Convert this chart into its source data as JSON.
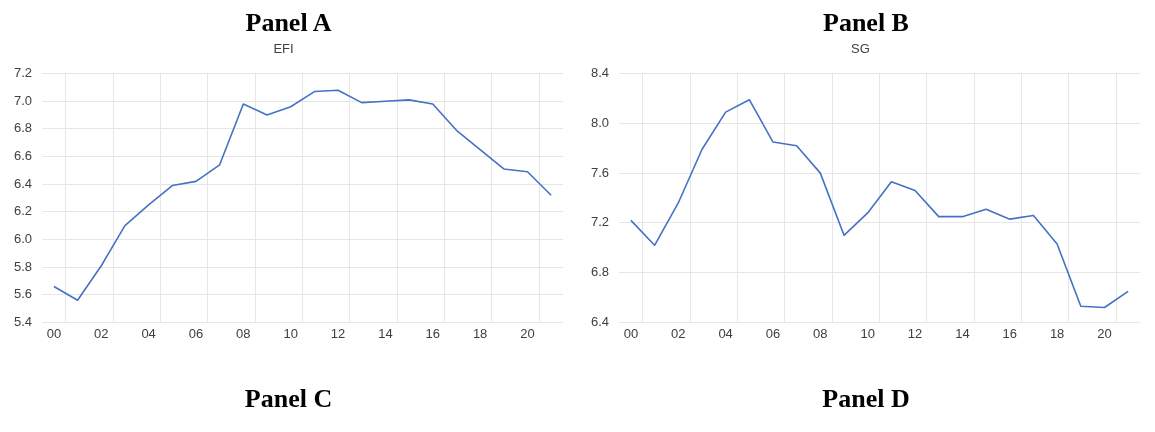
{
  "chart_data": [
    {
      "type": "line",
      "title": "Panel A",
      "subtitle": "EFI",
      "categories": [
        "00",
        null,
        "02",
        null,
        "04",
        null,
        "06",
        null,
        "08",
        null,
        "10",
        null,
        "12",
        null,
        "14",
        null,
        "16",
        null,
        "18",
        null,
        "20",
        null
      ],
      "series": [
        {
          "color": "#4472c4",
          "values": [
            5.66,
            5.56,
            5.81,
            6.1,
            6.25,
            6.39,
            6.42,
            6.54,
            6.98,
            6.9,
            6.96,
            7.07,
            7.08,
            6.99,
            7.0,
            7.01,
            6.98,
            6.79,
            6.65,
            6.51,
            6.49,
            6.32
          ]
        }
      ],
      "ylim": [
        5.4,
        7.2
      ],
      "yticks": [
        5.4,
        5.6,
        5.8,
        {
          "value": 6,
          "label": "6.0"
        },
        6.2,
        6.4,
        6.6,
        6.8,
        {
          "value": 7,
          "label": "7.0"
        },
        7.2
      ],
      "grid": true,
      "legend": false,
      "marker": "none",
      "line_style": "solid"
    },
    {
      "type": "line",
      "title": "Panel B",
      "subtitle": "SG",
      "categories": [
        "00",
        null,
        "02",
        null,
        "04",
        null,
        "06",
        null,
        "08",
        null,
        "10",
        null,
        "12",
        null,
        "14",
        null,
        "16",
        null,
        "18",
        null,
        "20",
        null
      ],
      "series": [
        {
          "color": "#4472c4",
          "values": [
            7.22,
            7.02,
            7.36,
            7.79,
            8.09,
            8.19,
            7.85,
            7.82,
            7.6,
            7.1,
            7.28,
            7.53,
            7.46,
            7.25,
            7.25,
            7.31,
            7.23,
            7.26,
            7.03,
            6.53,
            6.52,
            6.65
          ]
        }
      ],
      "ylim": [
        6.4,
        8.4
      ],
      "yticks": [
        6.4,
        6.8,
        7.2,
        7.6,
        {
          "value": 8,
          "label": "8.0"
        },
        8.4
      ],
      "grid": true,
      "legend": false,
      "marker": "none",
      "line_style": "solid"
    },
    {
      "type": "other",
      "title": "Panel C"
    },
    {
      "type": "other",
      "title": "Panel D"
    }
  ]
}
